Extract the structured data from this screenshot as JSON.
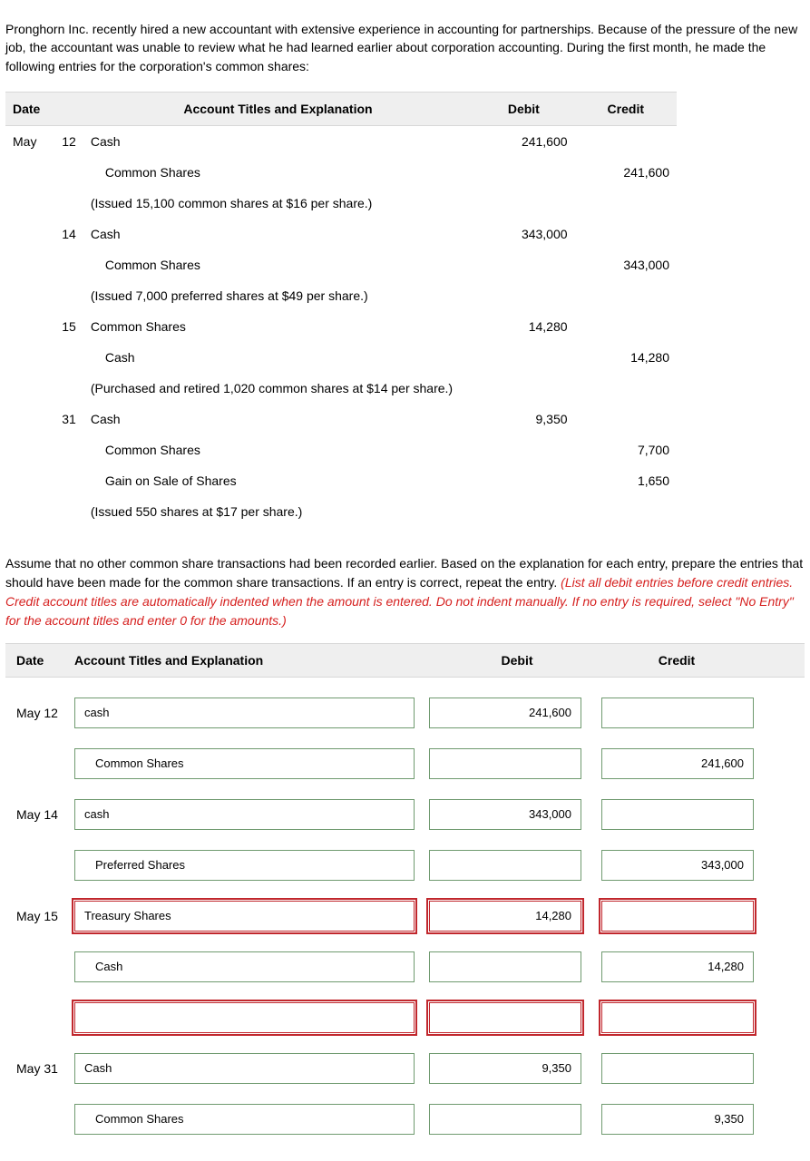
{
  "intro": "Pronghorn Inc. recently hired a new accountant with extensive experience in accounting for partnerships. Because of the pressure of the new job, the accountant was unable to review what he had learned earlier about corporation accounting. During the first month, he made the following entries for the corporation's common shares:",
  "journal_header": {
    "date": "Date",
    "acct": "Account Titles and Explanation",
    "debit": "Debit",
    "credit": "Credit"
  },
  "journal": [
    {
      "month": "May",
      "day": "12",
      "acct": "Cash",
      "debit": "241,600",
      "credit": ""
    },
    {
      "month": "",
      "day": "",
      "acct_indent": "Common Shares",
      "debit": "",
      "credit": "241,600"
    },
    {
      "month": "",
      "day": "",
      "explain": "(Issued 15,100 common shares at $16 per share.)"
    },
    {
      "month": "",
      "day": "14",
      "acct": "Cash",
      "debit": "343,000",
      "credit": ""
    },
    {
      "month": "",
      "day": "",
      "acct_indent": "Common Shares",
      "debit": "",
      "credit": "343,000"
    },
    {
      "month": "",
      "day": "",
      "explain": "(Issued 7,000 preferred shares at $49 per share.)"
    },
    {
      "month": "",
      "day": "15",
      "acct": "Common Shares",
      "debit": "14,280",
      "credit": ""
    },
    {
      "month": "",
      "day": "",
      "acct_indent": "Cash",
      "debit": "",
      "credit": "14,280"
    },
    {
      "month": "",
      "day": "",
      "explain": "(Purchased and retired 1,020 common shares at $14 per share.)"
    },
    {
      "month": "",
      "day": "31",
      "acct": "Cash",
      "debit": "9,350",
      "credit": ""
    },
    {
      "month": "",
      "day": "",
      "acct_indent": "Common Shares",
      "debit": "",
      "credit": "7,700"
    },
    {
      "month": "",
      "day": "",
      "acct_indent": "Gain on Sale of Shares",
      "debit": "",
      "credit": "1,650"
    },
    {
      "month": "",
      "day": "",
      "explain": "(Issued 550 shares at $17 per share.)"
    }
  ],
  "mid_plain": "Assume that no other common share transactions had been recorded earlier. Based on the explanation for each entry, prepare the entries that should have been made for the common share transactions. If an entry is correct, repeat the entry. ",
  "mid_red": "(List all debit entries before credit entries. Credit account titles are automatically indented when the amount is entered. Do not indent manually. If no entry is required, select \"No Entry\" for the account titles and enter 0 for the amounts.)",
  "answer_header": {
    "date": "Date",
    "acct": "Account Titles and Explanation",
    "debit": "Debit",
    "credit": "Credit"
  },
  "answers": [
    {
      "date": "May 12",
      "acct": "cash",
      "indent": false,
      "debit": "241,600",
      "credit": "",
      "err": false
    },
    {
      "date": "",
      "acct": "Common Shares",
      "indent": true,
      "debit": "",
      "credit": "241,600",
      "err": false
    },
    {
      "date": "May 14",
      "acct": "cash",
      "indent": false,
      "debit": "343,000",
      "credit": "",
      "err": false
    },
    {
      "date": "",
      "acct": "Preferred Shares",
      "indent": true,
      "debit": "",
      "credit": "343,000",
      "err": false
    },
    {
      "date": "May 15",
      "acct": "Treasury Shares",
      "indent": false,
      "debit": "14,280",
      "credit": "",
      "err": true
    },
    {
      "date": "",
      "acct": "Cash",
      "indent": true,
      "debit": "",
      "credit": "14,280",
      "err": false
    },
    {
      "date": "",
      "acct": "",
      "indent": false,
      "debit": "",
      "credit": "",
      "err": true
    },
    {
      "date": "May 31",
      "acct": "Cash",
      "indent": false,
      "debit": "9,350",
      "credit": "",
      "err": false
    },
    {
      "date": "",
      "acct": "Common Shares",
      "indent": true,
      "debit": "",
      "credit": "9,350",
      "err": false
    }
  ],
  "style": {
    "ok_border": "#6f9a6f",
    "err_border": "#c1272d",
    "header_bg": "#efefef",
    "red_text": "#d6201f"
  }
}
